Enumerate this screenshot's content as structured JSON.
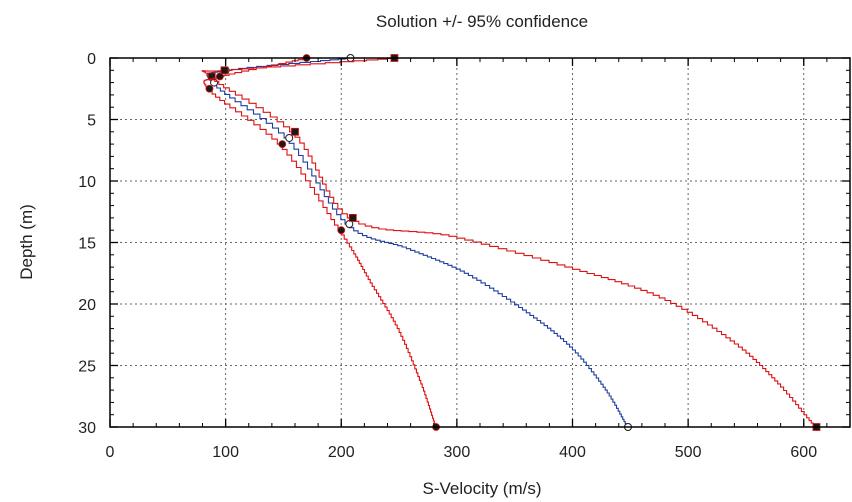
{
  "chart_data": {
    "type": "line",
    "title": "Solution +/- 95% confidence",
    "xlabel": "S-Velocity (m/s)",
    "ylabel": "Depth (m)",
    "xlim": [
      0,
      640
    ],
    "ylim": [
      30,
      0
    ],
    "y_inverted": true,
    "x_ticks": [
      0,
      100,
      200,
      300,
      400,
      500,
      600
    ],
    "y_ticks": [
      0,
      5,
      10,
      15,
      20,
      25,
      30
    ],
    "grid": true,
    "grid_style": "dotted",
    "colors": {
      "solution": "#1f3fa0",
      "bounds": "#dd1111",
      "axes": "#000000",
      "grid": "#666666"
    },
    "series": [
      {
        "color": "#1f3fa0",
        "marker": "open-circle",
        "points": [
          [
            208,
            0
          ],
          [
            100,
            1
          ],
          [
            90,
            2
          ],
          [
            155,
            6.5
          ],
          [
            207,
            13.5
          ],
          [
            260,
            15.5
          ],
          [
            310,
            17.5
          ],
          [
            360,
            20.5
          ],
          [
            400,
            23.5
          ],
          [
            430,
            27
          ],
          [
            448,
            30
          ]
        ],
        "marker_points": [
          [
            208,
            0
          ],
          [
            100,
            1
          ],
          [
            90,
            2
          ],
          [
            155,
            6.5
          ],
          [
            207,
            13.5
          ],
          [
            448,
            30
          ]
        ]
      },
      {
        "color": "#dd1111",
        "marker": "filled-square",
        "points": [
          [
            246,
            0
          ],
          [
            99,
            1
          ],
          [
            88,
            1.5
          ],
          [
            160,
            6
          ],
          [
            210,
            13
          ],
          [
            300,
            14.5
          ],
          [
            400,
            17
          ],
          [
            480,
            19.5
          ],
          [
            540,
            23
          ],
          [
            580,
            26.5
          ],
          [
            611,
            30
          ]
        ],
        "marker_points": [
          [
            246,
            0
          ],
          [
            99,
            1
          ],
          [
            88,
            1.5
          ],
          [
            160,
            6
          ],
          [
            210,
            13
          ],
          [
            611,
            30
          ]
        ]
      },
      {
        "color": "#dd1111",
        "marker": "filled-circle",
        "points": [
          [
            170,
            0
          ],
          [
            95,
            1.5
          ],
          [
            86,
            2.5
          ],
          [
            149,
            7
          ],
          [
            200,
            14
          ],
          [
            225,
            18
          ],
          [
            250,
            22
          ],
          [
            270,
            26.5
          ],
          [
            282,
            30
          ]
        ],
        "marker_points": [
          [
            170,
            0
          ],
          [
            95,
            1.5
          ],
          [
            86,
            2.5
          ],
          [
            149,
            7
          ],
          [
            200,
            14
          ],
          [
            282,
            30
          ]
        ]
      }
    ]
  }
}
